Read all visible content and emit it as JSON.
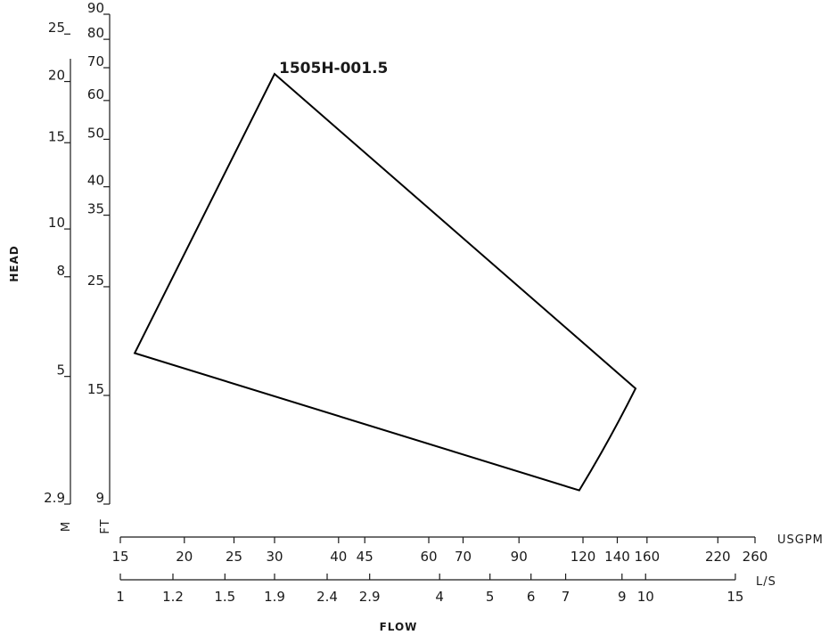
{
  "chart_data": {
    "type": "line",
    "curve_label": "1505H-001.5",
    "axis_titles": {
      "y": "HEAD",
      "x": "FLOW"
    },
    "y_axis_ft": {
      "unit": "FT",
      "scale": "log",
      "ticks": [
        9,
        15,
        25,
        35,
        40,
        50,
        60,
        70,
        80,
        90
      ],
      "range": [
        9,
        90
      ]
    },
    "y_axis_m": {
      "unit": "M",
      "ticks": [
        {
          "label": "2.9",
          "ft": 9
        },
        {
          "label": "5",
          "ft": 16.4
        },
        {
          "label": "8",
          "ft": 26.2
        },
        {
          "label": "10",
          "ft": 32.8
        },
        {
          "label": "15",
          "ft": 49.2
        },
        {
          "label": "20",
          "ft": 65.6
        },
        {
          "label": "25",
          "ft": 82
        }
      ]
    },
    "x_axis_gpm": {
      "unit": "USGPM",
      "scale": "log",
      "ticks": [
        15,
        20,
        25,
        30,
        40,
        45,
        60,
        70,
        90,
        120,
        140,
        160,
        220,
        260
      ],
      "range": [
        15,
        260
      ]
    },
    "x_axis_ls": {
      "unit": "L/S",
      "ticks": [
        {
          "label": "1",
          "gpm": 15
        },
        {
          "label": "1.2",
          "gpm": 19
        },
        {
          "label": "1.5",
          "gpm": 24
        },
        {
          "label": "1.9",
          "gpm": 30
        },
        {
          "label": "2.4",
          "gpm": 38
        },
        {
          "label": "2.9",
          "gpm": 46
        },
        {
          "label": "4",
          "gpm": 63
        },
        {
          "label": "5",
          "gpm": 79
        },
        {
          "label": "6",
          "gpm": 95
        },
        {
          "label": "7",
          "gpm": 111
        },
        {
          "label": "9",
          "gpm": 143
        },
        {
          "label": "10",
          "gpm": 159
        },
        {
          "label": "15",
          "gpm": 238
        }
      ]
    },
    "series": [
      {
        "points": [
          {
            "x": 30,
            "y": 68
          },
          {
            "x": 152,
            "y": 15.5
          },
          {
            "x": 135,
            "y": 12.1
          },
          {
            "x": 118,
            "y": 9.6
          },
          {
            "x": 16,
            "y": 18.3
          },
          {
            "x": 30,
            "y": 68
          }
        ]
      }
    ]
  }
}
